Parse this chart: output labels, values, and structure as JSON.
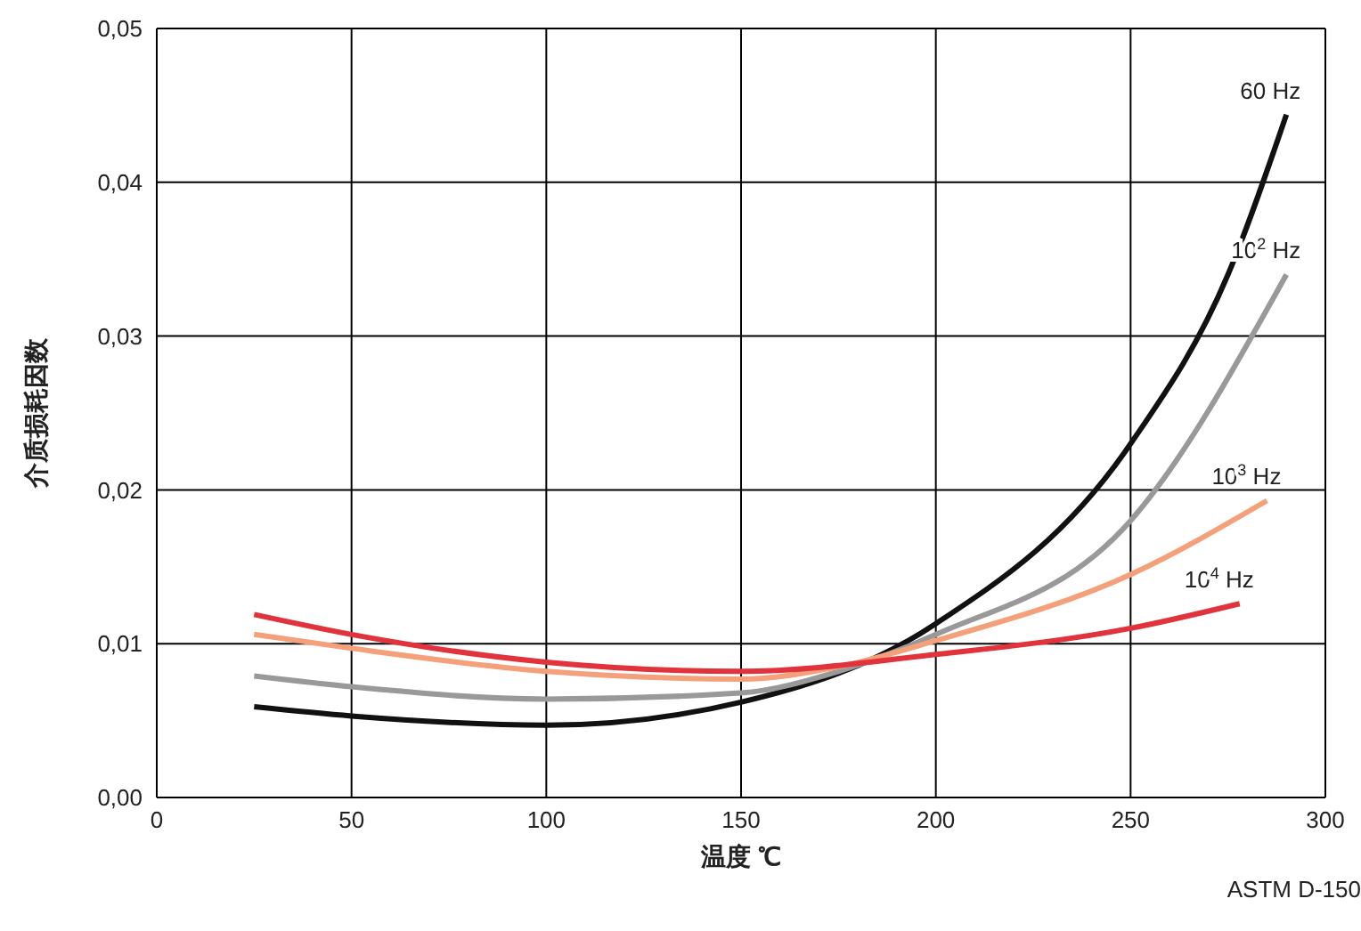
{
  "chart_data": {
    "type": "line",
    "xlabel": "温度 ℃",
    "ylabel": "介质损耗因数",
    "annotations": [
      "ASTM D-150"
    ],
    "xlim": [
      0,
      300
    ],
    "xticks": [
      0,
      50,
      100,
      150,
      200,
      250,
      300
    ],
    "ylim": [
      0,
      0.05
    ],
    "yticks": [
      {
        "value": 0,
        "label": "0,00"
      },
      {
        "value": 0.01,
        "label": "0,01"
      },
      {
        "value": 0.02,
        "label": "0,02"
      },
      {
        "value": 0.03,
        "label": "0,03"
      },
      {
        "value": 0.04,
        "label": "0,04"
      },
      {
        "value": 0.05,
        "label": "0,05"
      }
    ],
    "grid": true,
    "series": [
      {
        "name": "60 Hz",
        "color": "#111111",
        "x": [
          25,
          50,
          100,
          150,
          200,
          250,
          275,
          290
        ],
        "values": [
          0.0059,
          0.0053,
          0.0047,
          0.0062,
          0.0113,
          0.023,
          0.034,
          0.0444
        ]
      },
      {
        "name": "10$^{2}$ Hz",
        "color": "#999999",
        "x": [
          25,
          50,
          100,
          150,
          175,
          200,
          250,
          290
        ],
        "values": [
          0.0079,
          0.0072,
          0.0064,
          0.0068,
          0.0082,
          0.0106,
          0.018,
          0.034
        ]
      },
      {
        "name": "10$^{3}$ Hz",
        "color": "#f4a07a",
        "x": [
          25,
          50,
          100,
          150,
          175,
          200,
          250,
          285
        ],
        "values": [
          0.0106,
          0.0097,
          0.0082,
          0.0077,
          0.0085,
          0.0102,
          0.0145,
          0.0193
        ]
      },
      {
        "name": "10$^{4}$ Hz",
        "color": "#e0333c",
        "x": [
          25,
          50,
          100,
          150,
          200,
          250,
          278
        ],
        "values": [
          0.0119,
          0.0106,
          0.0088,
          0.0082,
          0.0093,
          0.011,
          0.0126
        ]
      }
    ]
  }
}
